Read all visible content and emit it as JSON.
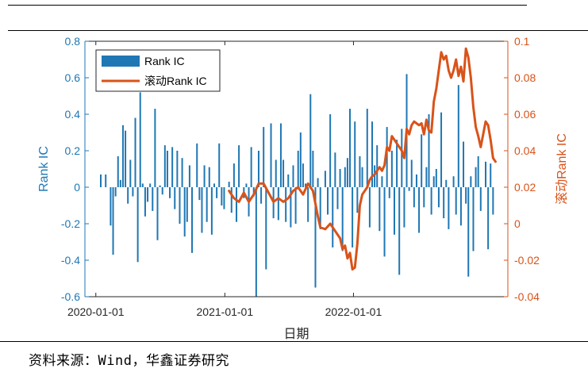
{
  "colors": {
    "bar": "#1f77b4",
    "line": "#d95319",
    "axis_left": "#1f77b4",
    "axis_right": "#d95319"
  },
  "source_note": "资料来源：Wind，华鑫证券研究",
  "chart_data": {
    "type": "bar+line",
    "title": "",
    "xlabel": "日期",
    "ylabel_left": "Rank IC",
    "ylabel_right": "滚动Rank IC",
    "ylim_left": [
      -0.6,
      0.8
    ],
    "ylim_right": [
      -0.04,
      0.1
    ],
    "yticks_left": [
      "0.8",
      "0.6",
      "0.4",
      "0.2",
      "0",
      "-0.2",
      "-0.4",
      "-0.6"
    ],
    "yticks_right": [
      "0.1",
      "0.08",
      "0.06",
      "0.04",
      "0.02",
      "0",
      "-0.02",
      "-0.04"
    ],
    "xticks": [
      "2020-01-01",
      "2021-01-01",
      "2022-01-01"
    ],
    "xlim": [
      "2019-12-01",
      "2023-03-15"
    ],
    "legend": {
      "position": "top-left",
      "entries": [
        "Rank IC",
        "滚动Rank IC"
      ]
    },
    "grid": false,
    "series": [
      {
        "name": "Rank IC",
        "kind": "bar",
        "axis": "left",
        "points": [
          [
            "2020-01-15",
            0.07
          ],
          [
            "2020-01-29",
            0.07
          ],
          [
            "2020-02-12",
            -0.21
          ],
          [
            "2020-02-19",
            -0.37
          ],
          [
            "2020-02-26",
            -0.05
          ],
          [
            "2020-03-04",
            0.17
          ],
          [
            "2020-03-11",
            0.04
          ],
          [
            "2020-03-18",
            0.34
          ],
          [
            "2020-03-25",
            0.31
          ],
          [
            "2020-04-01",
            -0.09
          ],
          [
            "2020-04-08",
            0.15
          ],
          [
            "2020-04-15",
            -0.05
          ],
          [
            "2020-04-22",
            0.38
          ],
          [
            "2020-04-29",
            -0.41
          ],
          [
            "2020-05-06",
            0.52
          ],
          [
            "2020-05-13",
            0.02
          ],
          [
            "2020-05-20",
            -0.16
          ],
          [
            "2020-05-27",
            -0.08
          ],
          [
            "2020-06-03",
            0.02
          ],
          [
            "2020-06-10",
            -0.13
          ],
          [
            "2020-06-17",
            0.43
          ],
          [
            "2020-06-24",
            -0.29
          ],
          [
            "2020-07-01",
            0.01
          ],
          [
            "2020-07-08",
            -0.04
          ],
          [
            "2020-07-15",
            0.23
          ],
          [
            "2020-07-22",
            0.2
          ],
          [
            "2020-07-29",
            -0.06
          ],
          [
            "2020-08-05",
            0.22
          ],
          [
            "2020-08-12",
            -0.12
          ],
          [
            "2020-08-19",
            0.2
          ],
          [
            "2020-08-26",
            -0.2
          ],
          [
            "2020-09-02",
            0.16
          ],
          [
            "2020-09-09",
            -0.27
          ],
          [
            "2020-09-16",
            -0.19
          ],
          [
            "2020-09-23",
            0.12
          ],
          [
            "2020-09-30",
            -0.36
          ],
          [
            "2020-10-14",
            0.24
          ],
          [
            "2020-10-21",
            -0.07
          ],
          [
            "2020-10-28",
            -0.25
          ],
          [
            "2020-11-04",
            0.12
          ],
          [
            "2020-11-11",
            -0.19
          ],
          [
            "2020-11-18",
            0.11
          ],
          [
            "2020-11-25",
            -0.26
          ],
          [
            "2020-12-02",
            0.02
          ],
          [
            "2020-12-09",
            -0.06
          ],
          [
            "2020-12-16",
            0.24
          ],
          [
            "2020-12-23",
            -0.1
          ],
          [
            "2020-12-30",
            -0.12
          ],
          [
            "2021-01-13",
            0.03
          ],
          [
            "2021-01-20",
            -0.14
          ],
          [
            "2021-01-27",
            0.13
          ],
          [
            "2021-02-03",
            -0.19
          ],
          [
            "2021-02-10",
            0.23
          ],
          [
            "2021-02-24",
            -0.06
          ],
          [
            "2021-03-03",
            0.02
          ],
          [
            "2021-03-10",
            -0.16
          ],
          [
            "2021-03-17",
            0.22
          ],
          [
            "2021-03-24",
            -0.05
          ],
          [
            "2021-03-31",
            -0.6
          ],
          [
            "2021-04-07",
            0.2
          ],
          [
            "2021-04-14",
            -0.09
          ],
          [
            "2021-04-21",
            0.33
          ],
          [
            "2021-04-28",
            -0.45
          ],
          [
            "2021-05-12",
            0.35
          ],
          [
            "2021-05-19",
            -0.17
          ],
          [
            "2021-05-26",
            0.15
          ],
          [
            "2021-06-02",
            -0.18
          ],
          [
            "2021-06-09",
            0.35
          ],
          [
            "2021-06-16",
            0.15
          ],
          [
            "2021-06-23",
            -0.19
          ],
          [
            "2021-06-30",
            0.07
          ],
          [
            "2021-07-07",
            -0.22
          ],
          [
            "2021-07-14",
            0.12
          ],
          [
            "2021-07-21",
            -0.2
          ],
          [
            "2021-07-28",
            0.2
          ],
          [
            "2021-08-04",
            0.3
          ],
          [
            "2021-08-11",
            0.13
          ],
          [
            "2021-08-18",
            0.02
          ],
          [
            "2021-08-25",
            -0.19
          ],
          [
            "2021-09-01",
            0.51
          ],
          [
            "2021-09-08",
            0.2
          ],
          [
            "2021-09-15",
            -0.55
          ],
          [
            "2021-09-22",
            0.05
          ],
          [
            "2021-09-29",
            -0.23
          ],
          [
            "2021-10-13",
            0.09
          ],
          [
            "2021-10-20",
            -0.15
          ],
          [
            "2021-10-27",
            0.4
          ],
          [
            "2021-11-03",
            -0.33
          ],
          [
            "2021-11-10",
            0.19
          ],
          [
            "2021-11-17",
            -0.12
          ],
          [
            "2021-11-24",
            0.1
          ],
          [
            "2021-12-01",
            -0.35
          ],
          [
            "2021-12-08",
            0.11
          ],
          [
            "2021-12-15",
            0.16
          ],
          [
            "2021-12-22",
            0.43
          ],
          [
            "2021-12-29",
            -0.33
          ],
          [
            "2022-01-05",
            0.36
          ],
          [
            "2022-01-12",
            -0.14
          ],
          [
            "2022-01-19",
            0.17
          ],
          [
            "2022-01-26",
            0.11
          ],
          [
            "2022-02-09",
            0.43
          ],
          [
            "2022-02-16",
            -0.22
          ],
          [
            "2022-02-23",
            0.36
          ],
          [
            "2022-03-02",
            0.12
          ],
          [
            "2022-03-09",
            0.23
          ],
          [
            "2022-03-16",
            -0.24
          ],
          [
            "2022-03-23",
            0.06
          ],
          [
            "2022-03-30",
            -0.38
          ],
          [
            "2022-04-06",
            0.33
          ],
          [
            "2022-04-13",
            -0.06
          ],
          [
            "2022-04-20",
            0.2
          ],
          [
            "2022-04-27",
            -0.26
          ],
          [
            "2022-05-04",
            0.26
          ],
          [
            "2022-05-11",
            -0.48
          ],
          [
            "2022-05-18",
            0.32
          ],
          [
            "2022-05-25",
            -0.22
          ],
          [
            "2022-06-01",
            0.62
          ],
          [
            "2022-06-08",
            -0.02
          ],
          [
            "2022-06-15",
            0.15
          ],
          [
            "2022-06-22",
            -0.11
          ],
          [
            "2022-06-29",
            0.07
          ],
          [
            "2022-07-06",
            -0.25
          ],
          [
            "2022-07-13",
            0.29
          ],
          [
            "2022-07-20",
            -0.11
          ],
          [
            "2022-07-27",
            0.11
          ],
          [
            "2022-08-03",
            0.4
          ],
          [
            "2022-08-10",
            -0.15
          ],
          [
            "2022-08-17",
            0.06
          ],
          [
            "2022-08-24",
            0.1
          ],
          [
            "2022-08-31",
            -0.11
          ],
          [
            "2022-09-07",
            0.41
          ],
          [
            "2022-09-14",
            -0.17
          ],
          [
            "2022-09-21",
            0.04
          ],
          [
            "2022-09-28",
            -0.23
          ],
          [
            "2022-10-12",
            0.06
          ],
          [
            "2022-10-19",
            -0.15
          ],
          [
            "2022-10-26",
            0.56
          ],
          [
            "2022-11-02",
            -0.21
          ],
          [
            "2022-11-09",
            0.25
          ],
          [
            "2022-11-16",
            -0.09
          ],
          [
            "2022-11-23",
            -0.49
          ],
          [
            "2022-11-30",
            0.06
          ],
          [
            "2022-12-07",
            -0.35
          ],
          [
            "2022-12-14",
            0.11
          ],
          [
            "2022-12-21",
            0.17
          ],
          [
            "2022-12-28",
            -0.13
          ],
          [
            "2023-01-11",
            0.14
          ],
          [
            "2023-01-18",
            -0.34
          ],
          [
            "2023-01-25",
            0.13
          ],
          [
            "2023-02-01",
            -0.15
          ]
        ]
      },
      {
        "name": "滚动Rank IC",
        "kind": "line",
        "axis": "right",
        "points": [
          [
            "2021-01-13",
            0.018
          ],
          [
            "2021-01-27",
            0.014
          ],
          [
            "2021-02-10",
            0.012
          ],
          [
            "2021-02-24",
            0.017
          ],
          [
            "2021-03-10",
            0.012
          ],
          [
            "2021-03-24",
            0.016
          ],
          [
            "2021-04-07",
            0.022
          ],
          [
            "2021-04-21",
            0.022
          ],
          [
            "2021-05-05",
            0.017
          ],
          [
            "2021-05-19",
            0.012
          ],
          [
            "2021-06-02",
            0.014
          ],
          [
            "2021-06-16",
            0.012
          ],
          [
            "2021-06-30",
            0.014
          ],
          [
            "2021-07-14",
            0.018
          ],
          [
            "2021-07-28",
            0.02
          ],
          [
            "2021-08-11",
            0.016
          ],
          [
            "2021-08-25",
            0.022
          ],
          [
            "2021-09-08",
            0.018
          ],
          [
            "2021-09-22",
            0.004
          ],
          [
            "2021-09-29",
            -0.002
          ],
          [
            "2021-10-13",
            -0.003
          ],
          [
            "2021-10-27",
            0.0
          ],
          [
            "2021-11-10",
            -0.004
          ],
          [
            "2021-11-24",
            -0.008
          ],
          [
            "2021-12-01",
            -0.014
          ],
          [
            "2021-12-08",
            -0.012
          ],
          [
            "2021-12-15",
            -0.019
          ],
          [
            "2021-12-22",
            -0.016
          ],
          [
            "2021-12-29",
            -0.025
          ],
          [
            "2022-01-05",
            -0.024
          ],
          [
            "2022-01-12",
            -0.011
          ],
          [
            "2022-01-19",
            0.01
          ],
          [
            "2022-01-26",
            0.016
          ],
          [
            "2022-02-09",
            0.02
          ],
          [
            "2022-02-16",
            0.024
          ],
          [
            "2022-02-23",
            0.026
          ],
          [
            "2022-03-02",
            0.027
          ],
          [
            "2022-03-09",
            0.029
          ],
          [
            "2022-03-16",
            0.031
          ],
          [
            "2022-03-23",
            0.029
          ],
          [
            "2022-03-30",
            0.032
          ],
          [
            "2022-04-06",
            0.042
          ],
          [
            "2022-04-13",
            0.04
          ],
          [
            "2022-04-20",
            0.048
          ],
          [
            "2022-04-27",
            0.046
          ],
          [
            "2022-05-04",
            0.044
          ],
          [
            "2022-05-11",
            0.042
          ],
          [
            "2022-05-18",
            0.04
          ],
          [
            "2022-05-25",
            0.036
          ],
          [
            "2022-06-01",
            0.052
          ],
          [
            "2022-06-08",
            0.049
          ],
          [
            "2022-06-15",
            0.054
          ],
          [
            "2022-06-22",
            0.056
          ],
          [
            "2022-06-29",
            0.055
          ],
          [
            "2022-07-06",
            0.054
          ],
          [
            "2022-07-13",
            0.055
          ],
          [
            "2022-07-20",
            0.049
          ],
          [
            "2022-07-27",
            0.057
          ],
          [
            "2022-08-03",
            0.051
          ],
          [
            "2022-08-10",
            0.05
          ],
          [
            "2022-08-17",
            0.067
          ],
          [
            "2022-08-24",
            0.074
          ],
          [
            "2022-08-31",
            0.084
          ],
          [
            "2022-09-07",
            0.094
          ],
          [
            "2022-09-14",
            0.09
          ],
          [
            "2022-09-21",
            0.092
          ],
          [
            "2022-09-28",
            0.084
          ],
          [
            "2022-10-05",
            0.08
          ],
          [
            "2022-10-12",
            0.084
          ],
          [
            "2022-10-19",
            0.09
          ],
          [
            "2022-10-26",
            0.081
          ],
          [
            "2022-11-02",
            0.086
          ],
          [
            "2022-11-09",
            0.078
          ],
          [
            "2022-11-16",
            0.096
          ],
          [
            "2022-11-23",
            0.091
          ],
          [
            "2022-11-30",
            0.08
          ],
          [
            "2022-12-07",
            0.064
          ],
          [
            "2022-12-14",
            0.053
          ],
          [
            "2022-12-21",
            0.048
          ],
          [
            "2022-12-28",
            0.042
          ],
          [
            "2023-01-04",
            0.049
          ],
          [
            "2023-01-11",
            0.056
          ],
          [
            "2023-01-18",
            0.054
          ],
          [
            "2023-01-25",
            0.046
          ],
          [
            "2023-02-01",
            0.036
          ],
          [
            "2023-02-08",
            0.034
          ]
        ]
      }
    ]
  }
}
